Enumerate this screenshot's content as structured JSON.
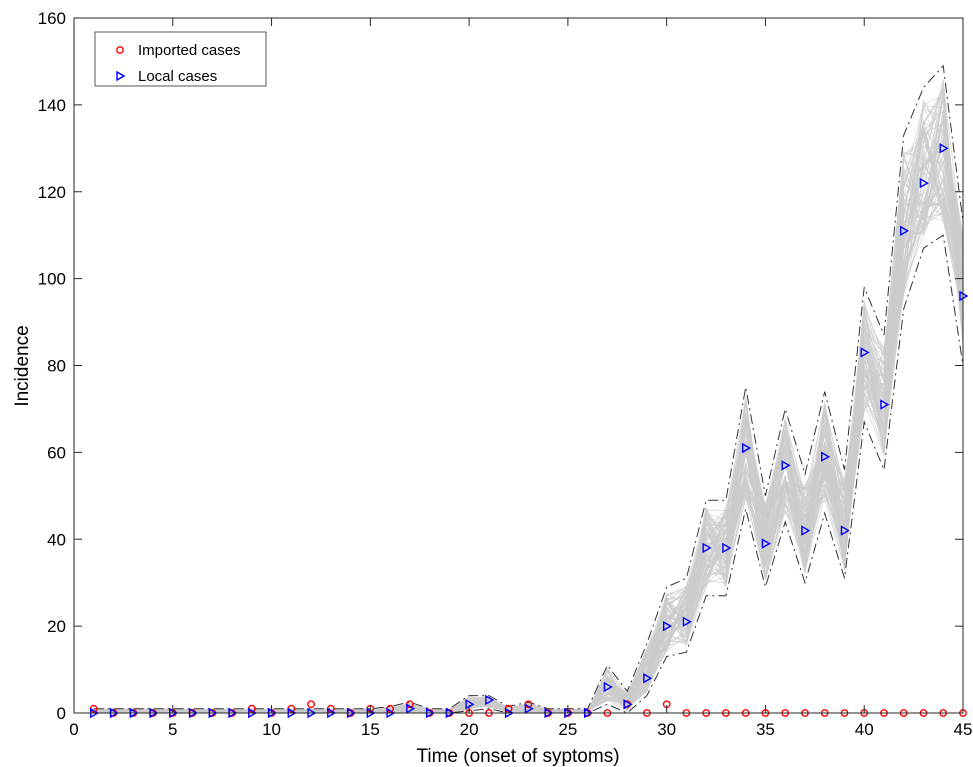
{
  "chart_data": {
    "type": "scatter",
    "xlabel": "Time (onset of syptoms)",
    "ylabel": "Incidence",
    "xlim": [
      0,
      45
    ],
    "ylim": [
      0,
      160
    ],
    "xticks": [
      0,
      5,
      10,
      15,
      20,
      25,
      30,
      35,
      40,
      45
    ],
    "yticks": [
      0,
      20,
      40,
      60,
      80,
      100,
      120,
      140,
      160
    ],
    "grid": false,
    "legend_position": "top-left",
    "series": [
      {
        "name": "Imported cases",
        "marker": "circle",
        "color": "#ff0000",
        "x": [
          1,
          2,
          3,
          4,
          5,
          6,
          7,
          8,
          9,
          10,
          11,
          12,
          13,
          14,
          15,
          16,
          17,
          18,
          19,
          20,
          21,
          22,
          23,
          24,
          25,
          26,
          27,
          28,
          29,
          30,
          31,
          32,
          33,
          34,
          35,
          36,
          37,
          38,
          39,
          40,
          41,
          42,
          43,
          44,
          45
        ],
        "values": [
          1,
          0,
          0,
          0,
          0,
          0,
          0,
          0,
          1,
          0,
          1,
          2,
          1,
          0,
          1,
          1,
          2,
          0,
          0,
          0,
          0,
          1,
          2,
          0,
          0,
          0,
          0,
          2,
          0,
          2,
          0,
          0,
          0,
          0,
          0,
          0,
          0,
          0,
          0,
          0,
          0,
          0,
          0,
          0,
          0
        ]
      },
      {
        "name": "Local cases",
        "marker": "triangle-right",
        "color": "#0000ff",
        "x": [
          1,
          2,
          3,
          4,
          5,
          6,
          7,
          8,
          9,
          10,
          11,
          12,
          13,
          14,
          15,
          16,
          17,
          18,
          19,
          20,
          21,
          22,
          23,
          24,
          25,
          26,
          27,
          28,
          29,
          30,
          31,
          32,
          33,
          34,
          35,
          36,
          37,
          38,
          39,
          40,
          41,
          42,
          43,
          44,
          45
        ],
        "values": [
          0,
          0,
          0,
          0,
          0,
          0,
          0,
          0,
          0,
          0,
          0,
          0,
          0,
          0,
          0,
          0,
          1,
          0,
          0,
          2,
          3,
          0,
          1,
          0,
          0,
          0,
          6,
          2,
          8,
          20,
          21,
          38,
          38,
          61,
          39,
          57,
          42,
          59,
          42,
          83,
          71,
          111,
          122,
          130,
          96
        ]
      }
    ],
    "simulation_band": {
      "x": [
        1,
        2,
        3,
        4,
        5,
        6,
        7,
        8,
        9,
        10,
        11,
        12,
        13,
        14,
        15,
        16,
        17,
        18,
        19,
        20,
        21,
        22,
        23,
        24,
        25,
        26,
        27,
        28,
        29,
        30,
        31,
        32,
        33,
        34,
        35,
        36,
        37,
        38,
        39,
        40,
        41,
        42,
        43,
        44,
        45
      ],
      "lower": [
        0,
        0,
        0,
        0,
        0,
        0,
        0,
        0,
        0,
        0,
        0,
        0,
        0,
        0,
        0,
        0,
        0,
        0,
        0,
        0.5,
        1,
        0,
        0,
        0,
        0,
        0,
        2,
        0,
        4,
        13,
        14,
        27,
        27,
        47,
        29,
        44,
        30,
        46,
        31,
        67,
        56,
        93,
        107,
        110,
        80
      ],
      "upper": [
        1,
        1,
        1,
        1,
        1,
        1,
        1,
        1,
        1,
        1,
        1,
        1,
        1,
        1,
        1,
        1.5,
        2.5,
        1,
        1,
        4,
        4,
        1.5,
        2.5,
        1,
        1,
        1,
        11,
        5,
        16,
        29,
        31,
        49,
        49,
        75,
        50,
        70,
        55,
        74,
        56,
        98,
        87,
        133,
        144,
        149,
        113
      ]
    },
    "simulation_color": "#cccccc",
    "band_line_color": "#333333"
  }
}
